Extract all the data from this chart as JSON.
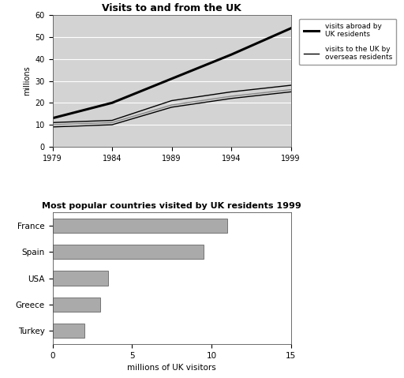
{
  "line_title": "Visits to and from the UK",
  "line_years": [
    1979,
    1984,
    1989,
    1994,
    1999
  ],
  "visits_abroad": [
    13,
    20,
    31,
    42,
    54
  ],
  "visits_to_uk_upper": [
    11,
    12,
    21,
    25,
    28
  ],
  "visits_to_uk_mid": [
    10,
    11,
    19,
    23,
    26
  ],
  "visits_to_uk_lower": [
    9,
    10,
    18,
    22,
    25
  ],
  "line_ylabel": "millions",
  "line_ylim": [
    0,
    60
  ],
  "line_xlim": [
    1979,
    1999
  ],
  "line_xticks": [
    1979,
    1984,
    1989,
    1994,
    1999
  ],
  "line_yticks": [
    0,
    10,
    20,
    30,
    40,
    50,
    60
  ],
  "legend_abroad": "visits abroad by\nUK residents",
  "legend_to_uk": "visits to the UK by\noverseas residents",
  "bar_title": "Most popular countries visited by UK residents 1999",
  "bar_countries": [
    "France",
    "Spain",
    "USA",
    "Greece",
    "Turkey"
  ],
  "bar_values": [
    11.0,
    9.5,
    3.5,
    3.0,
    2.0
  ],
  "bar_color": "#aaaaaa",
  "bar_xlabel": "millions of UK visitors",
  "bar_xlim": [
    0,
    15
  ],
  "bar_xticks": [
    0,
    5,
    10,
    15
  ],
  "bg_color": "#d3d3d3",
  "line_color_abroad": "#000000",
  "line_color_to_uk": "#555555"
}
